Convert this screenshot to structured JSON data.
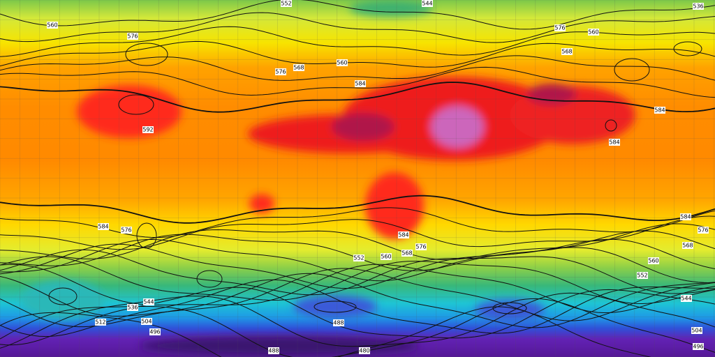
{
  "contour_labels": [
    552,
    544,
    536,
    560,
    576,
    568,
    576,
    560,
    584,
    592,
    584,
    584,
    576,
    568,
    560,
    584,
    576,
    584,
    576,
    568,
    560,
    552,
    544,
    536,
    512,
    504,
    496,
    488,
    488,
    480,
    544,
    504,
    496,
    576,
    584,
    568,
    560,
    552
  ]
}
